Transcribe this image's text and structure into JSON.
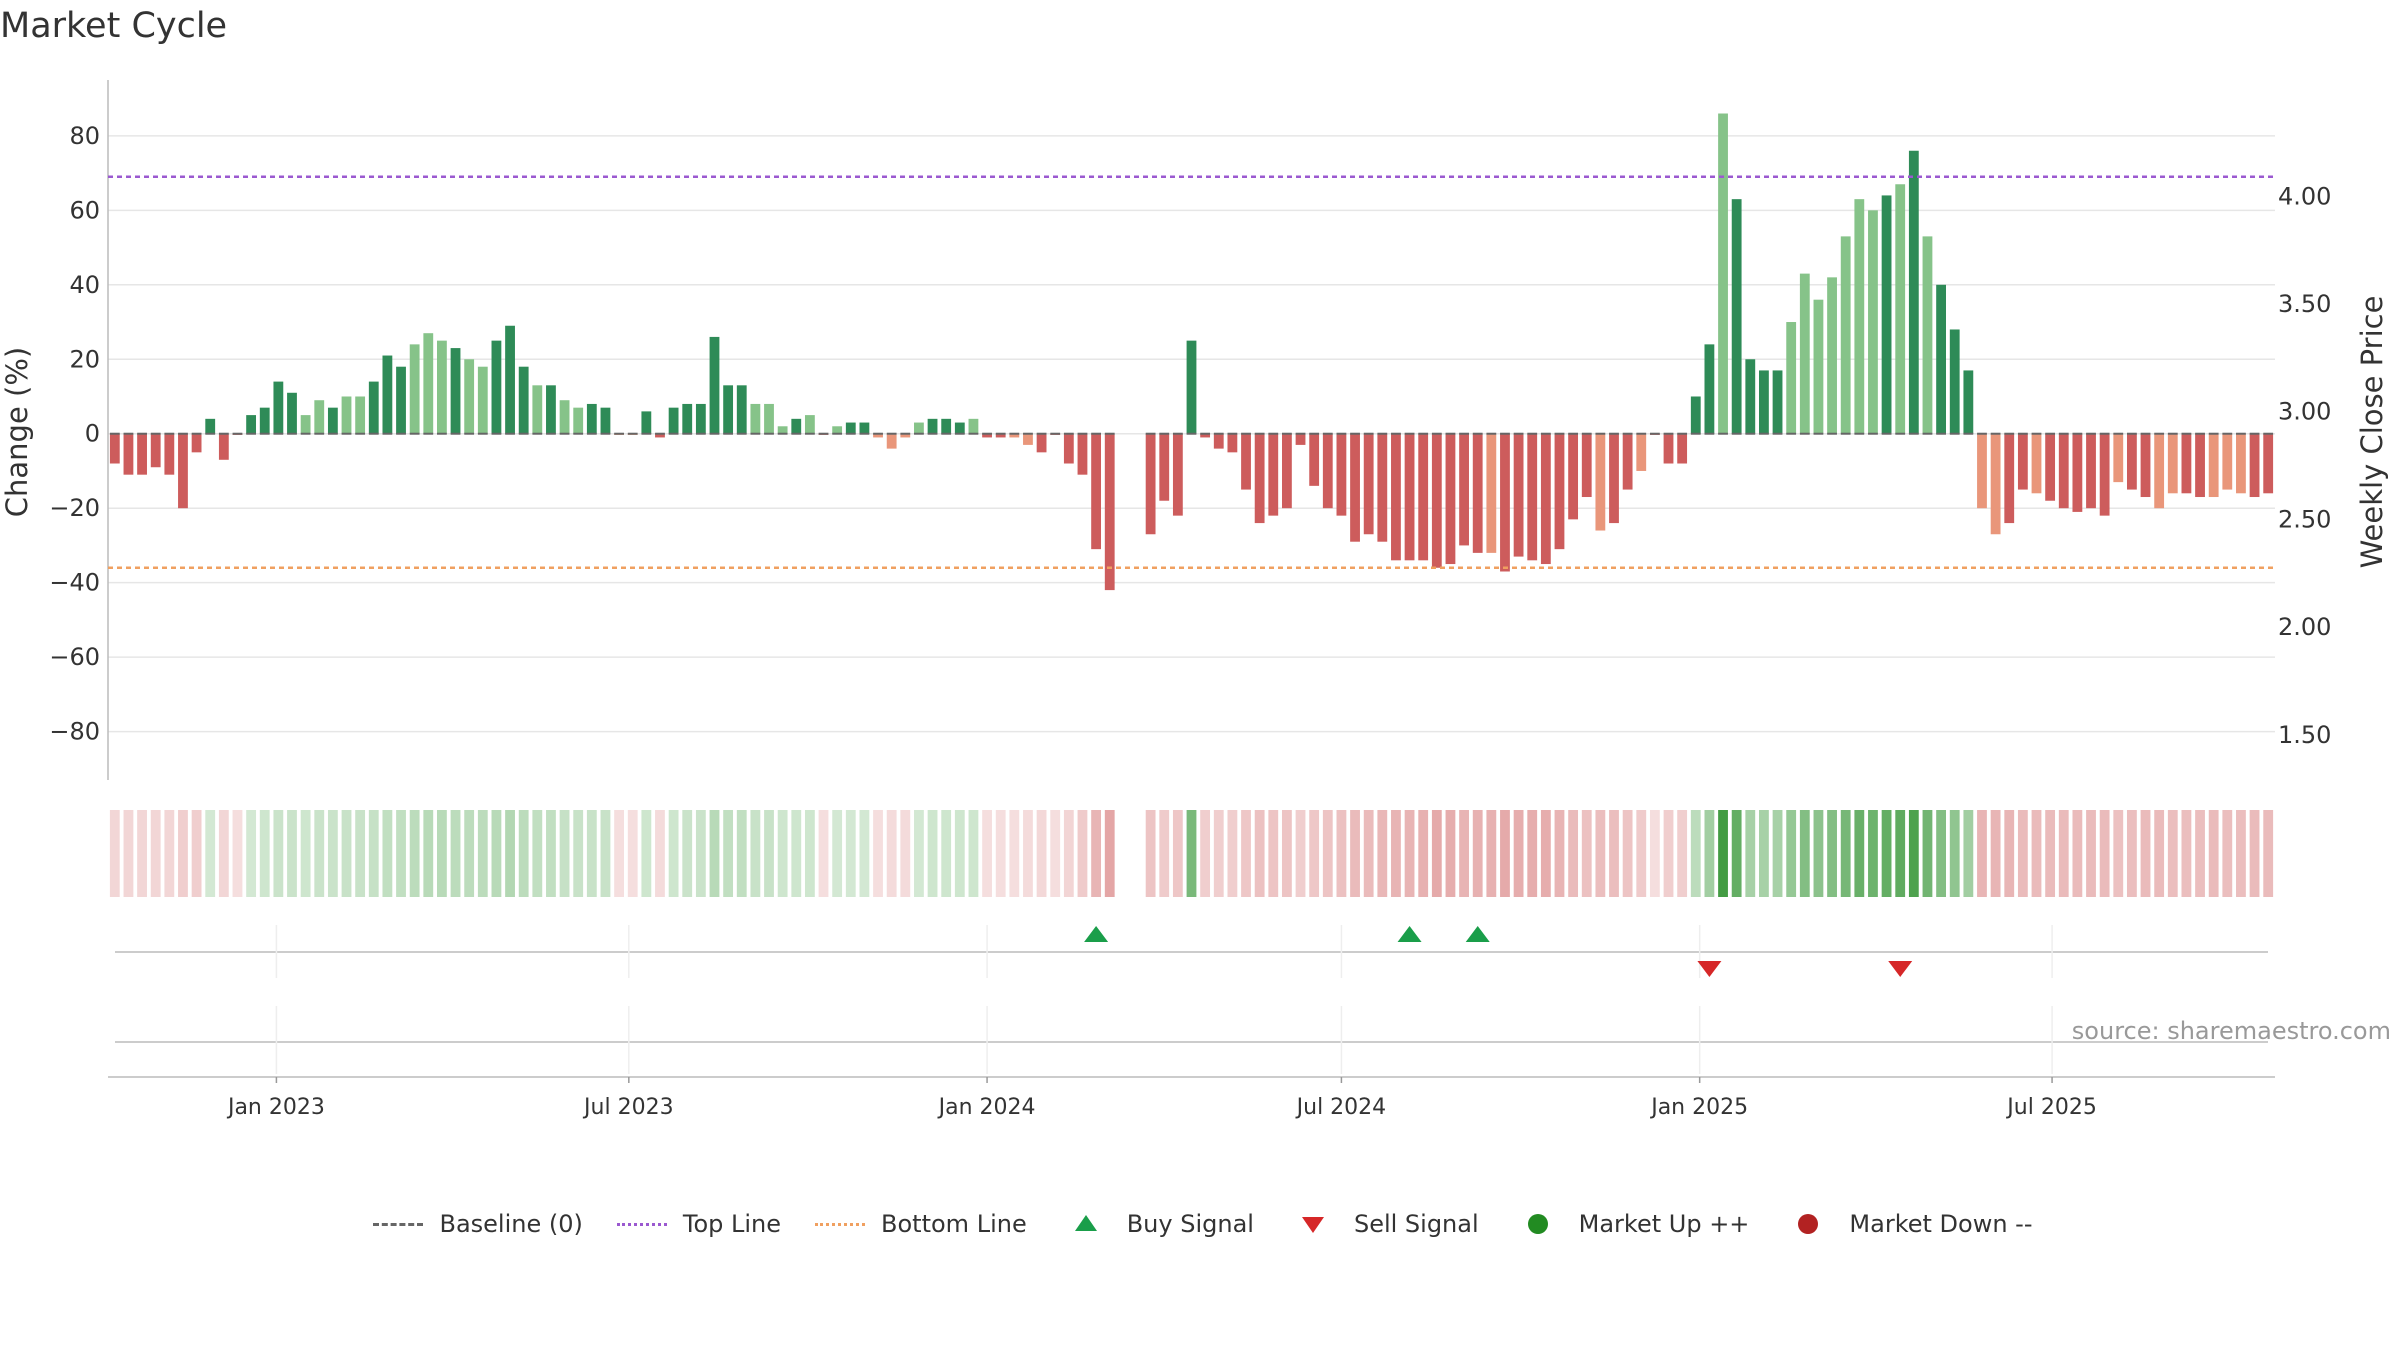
{
  "title": "Market Cycle",
  "source_note": "source: sharemaestro.com",
  "legend": {
    "baseline": "Baseline (0)",
    "top_line": "Top Line",
    "bottom_line": "Bottom Line",
    "buy_signal": "Buy Signal",
    "sell_signal": "Sell Signal",
    "market_up": "Market Up ++",
    "market_down": "Market Down --"
  },
  "colors": {
    "up_strong": "#2e8b57",
    "up_light": "#86c389",
    "down_strong": "#cd5c5c",
    "down_light": "#e9967a",
    "top_line": "#9b59d0",
    "bottom_line": "#f0a060",
    "buy": "#1a9e4a",
    "sell": "#d62728",
    "market_up": "#228b22",
    "market_down": "#b22222",
    "baseline": "#666666",
    "grid": "#e6e6e6"
  },
  "chart_data": {
    "type": "bar",
    "title": "Market Cycle",
    "ylabel": "Change (%)",
    "y2label": "Weekly Close Price",
    "ylim": [
      -93,
      95
    ],
    "y2lim": [
      1.29,
      4.54
    ],
    "yticks": [
      80,
      60,
      40,
      20,
      0,
      -20,
      -40,
      -60,
      -80
    ],
    "y2ticks": [
      "4.00",
      "3.50",
      "3.00",
      "2.50",
      "2.00",
      "1.50"
    ],
    "y2tick_values": [
      4.0,
      3.5,
      3.0,
      2.5,
      2.0,
      1.5
    ],
    "x_start": "2022-10-10",
    "x_interval_days": 7,
    "xticks": [
      {
        "label": "Jan 2023",
        "date": "2023-01-01"
      },
      {
        "label": "Jul 2023",
        "date": "2023-07-01"
      },
      {
        "label": "Jan 2024",
        "date": "2024-01-01"
      },
      {
        "label": "Jul 2024",
        "date": "2024-07-01"
      },
      {
        "label": "Jan 2025",
        "date": "2025-01-01"
      },
      {
        "label": "Jul 2025",
        "date": "2025-07-01"
      }
    ],
    "top_line": 69,
    "bottom_line": -36,
    "baseline": 0,
    "values": [
      -8,
      -11,
      -11,
      -9,
      -11,
      -20,
      -5,
      4,
      -7,
      0,
      5,
      7,
      14,
      11,
      5,
      9,
      7,
      10,
      10,
      14,
      21,
      18,
      24,
      27,
      25,
      23,
      20,
      18,
      25,
      29,
      18,
      13,
      13,
      9,
      7,
      8,
      7,
      0,
      0,
      6,
      -1,
      7,
      8,
      8,
      26,
      13,
      13,
      8,
      8,
      2,
      4,
      5,
      0,
      2,
      3,
      3,
      -1,
      -4,
      -1,
      3,
      4,
      4,
      3,
      4,
      -1,
      -1,
      -1,
      -3,
      -5,
      0,
      -8,
      -11,
      -31,
      -42,
      0,
      0,
      -27,
      -18,
      -22,
      25,
      -1,
      -4,
      -5,
      -15,
      -24,
      -22,
      -20,
      -3,
      -14,
      -20,
      -22,
      -29,
      -27,
      -29,
      -34,
      -34,
      -34,
      -36,
      -35,
      -30,
      -32,
      -32,
      -37,
      -33,
      -34,
      -35,
      -31,
      -23,
      -17,
      -26,
      -24,
      -15,
      -10,
      0,
      -8,
      -8,
      10,
      24,
      86,
      63,
      20,
      17,
      17,
      30,
      43,
      36,
      42,
      53,
      63,
      60,
      64,
      67,
      76,
      53,
      40,
      28,
      17,
      -20,
      -27,
      -24,
      -15,
      -16,
      -18,
      -20,
      -21,
      -20,
      -22,
      -13,
      -15,
      -17,
      -20,
      -16,
      -16,
      -17,
      -17,
      -15,
      -16,
      -17,
      -16
    ],
    "up_light_indices": [
      14,
      15,
      17,
      18,
      22,
      23,
      24,
      26,
      27,
      31,
      33,
      34,
      37,
      38,
      47,
      48,
      49,
      51,
      53,
      56,
      57,
      58,
      59,
      63,
      66,
      67,
      101,
      109,
      112,
      118,
      123,
      124,
      125,
      126,
      127,
      128,
      129,
      131,
      133,
      137,
      138,
      141,
      147,
      150,
      151,
      154,
      155,
      156
    ],
    "gaps": [
      74,
      75
    ],
    "buy_signals": [
      72,
      95,
      100
    ],
    "sell_signals": [
      117,
      131
    ],
    "regime_alpha": [
      0.25,
      0.25,
      0.25,
      0.25,
      0.25,
      0.3,
      0.3,
      0.2,
      0.25,
      0.2,
      0.2,
      0.22,
      0.24,
      0.24,
      0.22,
      0.24,
      0.24,
      0.25,
      0.25,
      0.26,
      0.28,
      0.28,
      0.3,
      0.32,
      0.32,
      0.3,
      0.3,
      0.3,
      0.32,
      0.35,
      0.3,
      0.28,
      0.28,
      0.26,
      0.25,
      0.25,
      0.25,
      0.2,
      0.2,
      0.22,
      0.22,
      0.22,
      0.24,
      0.24,
      0.32,
      0.28,
      0.28,
      0.25,
      0.25,
      0.22,
      0.22,
      0.22,
      0.2,
      0.2,
      0.2,
      0.2,
      0.2,
      0.22,
      0.22,
      0.2,
      0.22,
      0.22,
      0.22,
      0.22,
      0.2,
      0.2,
      0.2,
      0.22,
      0.24,
      0.2,
      0.26,
      0.32,
      0.45,
      0.55,
      0,
      0,
      0.36,
      0.32,
      0.34,
      0.6,
      0.3,
      0.3,
      0.3,
      0.34,
      0.38,
      0.36,
      0.36,
      0.3,
      0.34,
      0.36,
      0.38,
      0.42,
      0.42,
      0.44,
      0.46,
      0.46,
      0.48,
      0.52,
      0.5,
      0.46,
      0.48,
      0.48,
      0.52,
      0.5,
      0.5,
      0.5,
      0.46,
      0.42,
      0.38,
      0.4,
      0.4,
      0.36,
      0.32,
      0.2,
      0.3,
      0.3,
      0.3,
      0.42,
      0.85,
      0.7,
      0.4,
      0.4,
      0.4,
      0.48,
      0.56,
      0.52,
      0.56,
      0.62,
      0.68,
      0.66,
      0.7,
      0.72,
      0.8,
      0.64,
      0.56,
      0.5,
      0.42,
      0.45,
      0.45,
      0.45,
      0.42,
      0.42,
      0.42,
      0.42,
      0.42,
      0.42,
      0.42,
      0.38,
      0.4,
      0.42,
      0.42,
      0.4,
      0.4,
      0.4,
      0.42,
      0.4,
      0.4,
      0.42,
      0.42
    ]
  }
}
